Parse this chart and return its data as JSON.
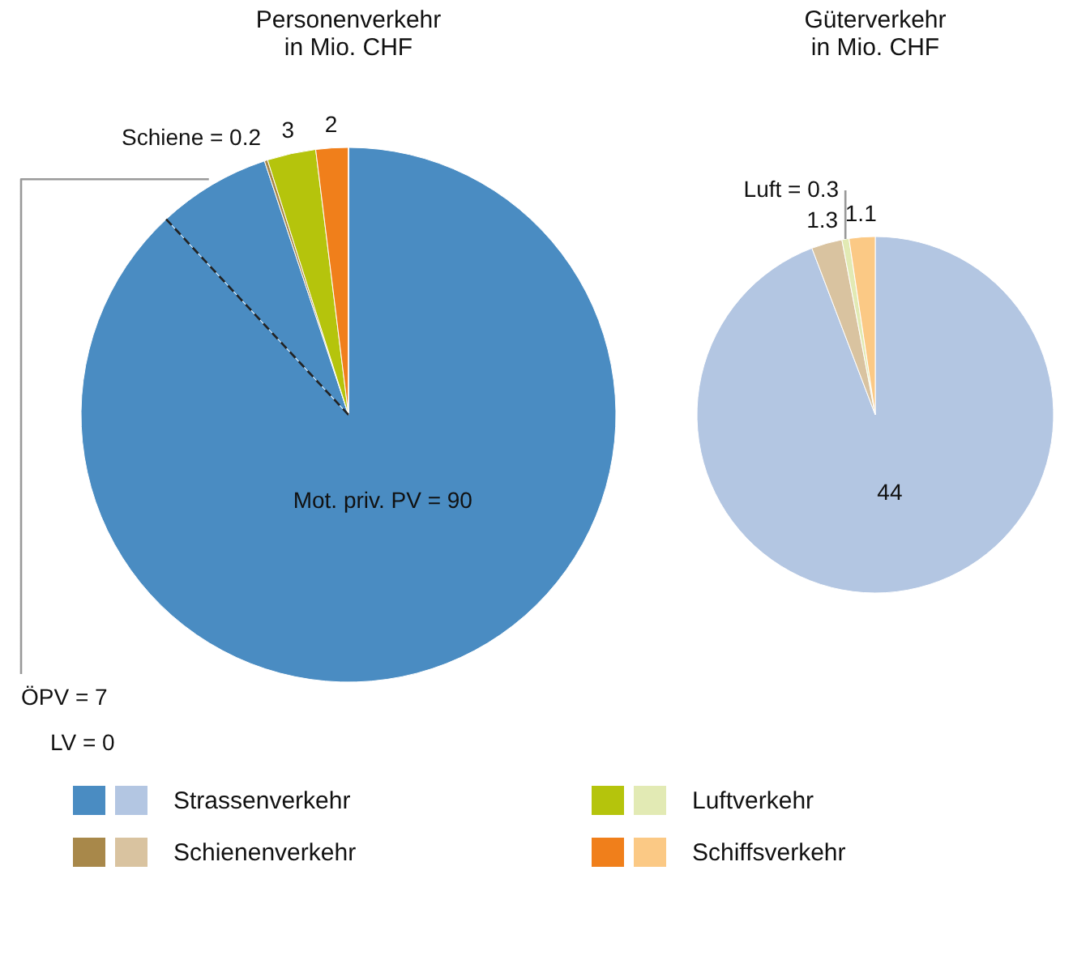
{
  "chart_data": [
    {
      "type": "pie",
      "title": "Personenverkehr\nin Mio. CHF",
      "categories": [
        null,
        null,
        null,
        null,
        null,
        null
      ],
      "values": [
        90,
        7,
        0.2,
        3,
        2,
        0
      ],
      "colors": [
        "#4a8cc2",
        "#4a8cc2",
        "#a8884a",
        "#b5c40c",
        "#f07f1b",
        "#4a8cc2"
      ],
      "value_labels": [
        "Mot. priv. PV = 90",
        "ÖPV = 7",
        "Schiene = 0.2",
        "3",
        "2",
        "LV = 0"
      ]
    },
    {
      "type": "pie",
      "title": "Güterverkehr\nin Mio. CHF",
      "categories": [
        "Strassenverkehr",
        "Schienenverkehr",
        "Luftverkehr",
        "Schiffsverkehr"
      ],
      "values": [
        44,
        1.3,
        0.3,
        1.1
      ],
      "colors": [
        "#b3c6e2",
        "#d9c3a0",
        "#e2eab4",
        "#fbc985"
      ],
      "value_labels": [
        "44",
        "1.3",
        "Luft = 0.3",
        "1.1"
      ],
      "legend": "bottom"
    }
  ]
}
